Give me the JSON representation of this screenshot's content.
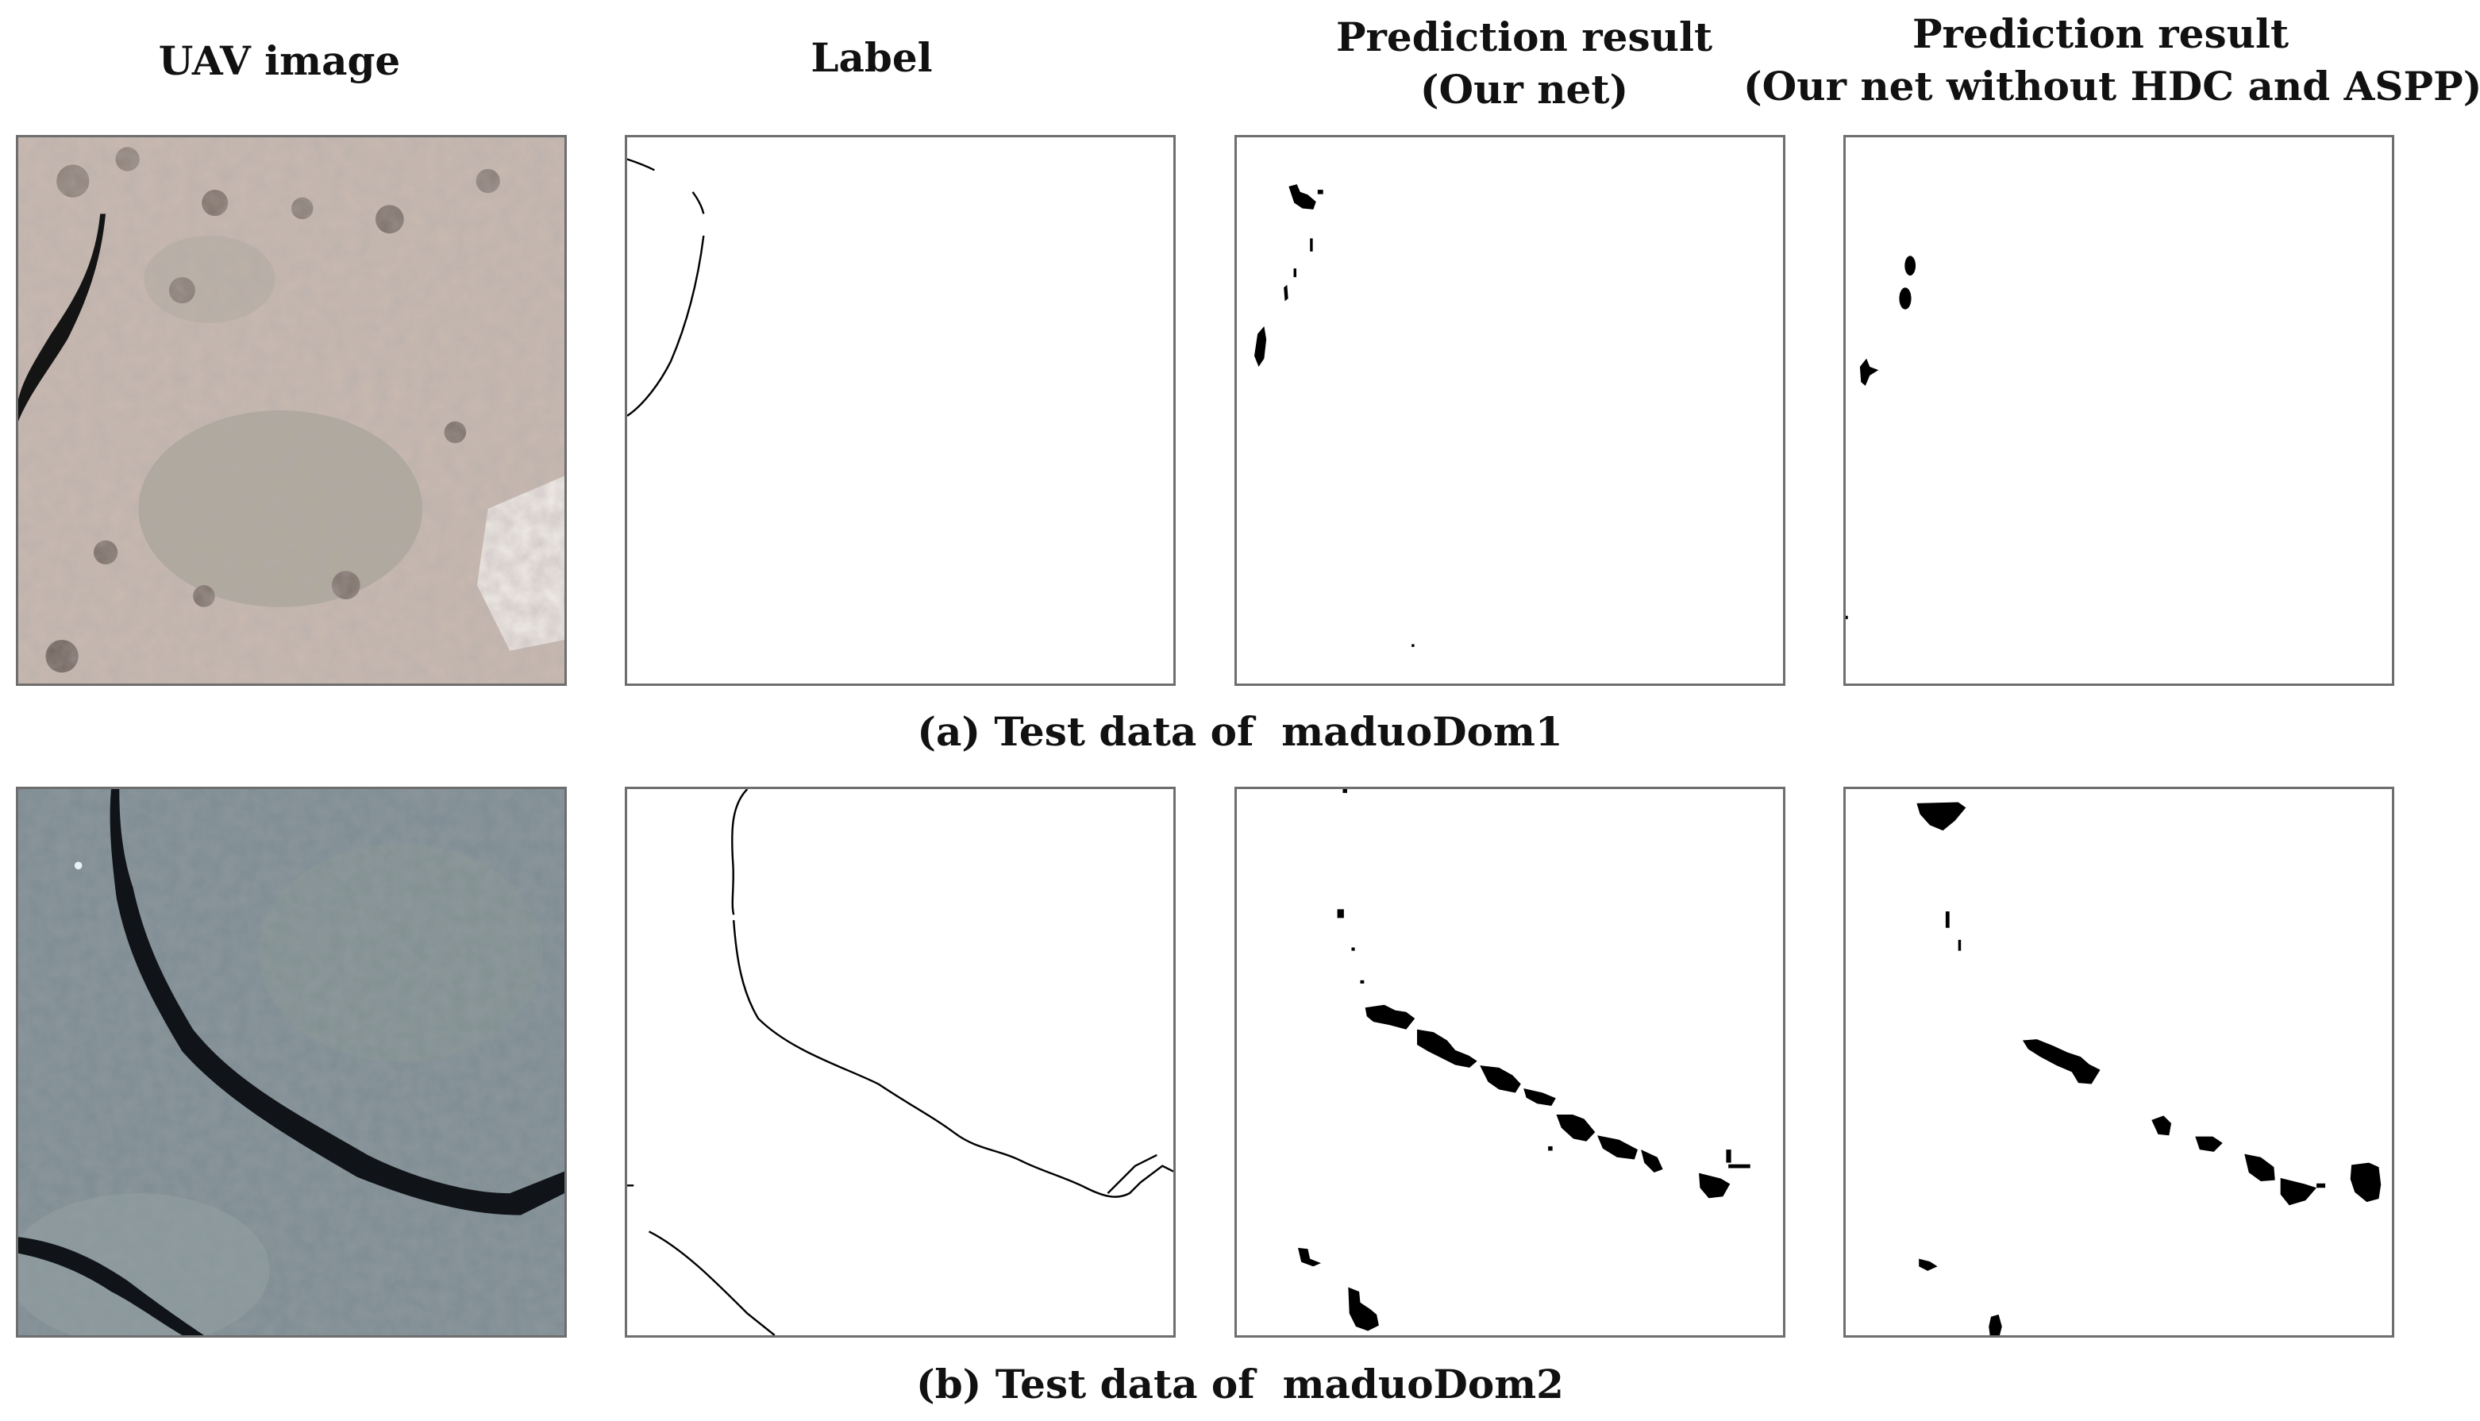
{
  "columns": {
    "uav": "UAV image",
    "label": "Label",
    "pred_line1": "Prediction result",
    "pred_line2": "(Our net)",
    "pred_ablation_line1": "Prediction result",
    "pred_ablation_line2": "(Our net without HDC and ASPP)"
  },
  "captions": {
    "a": "(a) Test data of  maduoDom1",
    "b": "(b) Test data of  maduoDom2"
  },
  "colors": {
    "crack": "#000000",
    "soil_light": "#c7b8ae",
    "soil_dark": "#6f7e87",
    "panel_border": "#6e6e6e"
  }
}
